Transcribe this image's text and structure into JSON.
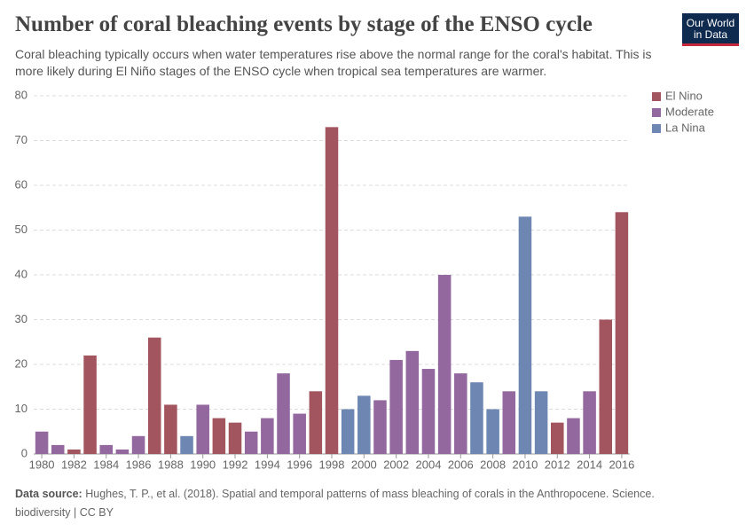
{
  "logo": "Our World in Data",
  "chart_data": {
    "type": "bar",
    "stacked": true,
    "title": "Number of coral bleaching events by stage of the ENSO cycle",
    "subtitle": "Coral bleaching typically occurs when water temperatures rise above the normal range for the coral's habitat. This is more likely during El Niño stages of the ENSO cycle when tropical sea temperatures are warmer.",
    "source_label": "Data source:",
    "source": "Hughes, T. P., et al. (2018). Spatial and temporal patterns of mass bleaching of corals in the Anthropocene. Science. biodiversity | CC BY",
    "x": [
      1980,
      1981,
      1982,
      1983,
      1984,
      1985,
      1986,
      1987,
      1988,
      1989,
      1990,
      1991,
      1992,
      1993,
      1994,
      1995,
      1996,
      1997,
      1998,
      1999,
      2000,
      2001,
      2002,
      2003,
      2004,
      2005,
      2006,
      2007,
      2008,
      2009,
      2010,
      2011,
      2012,
      2013,
      2014,
      2015,
      2016
    ],
    "xlim": [
      1979.5,
      2016.5
    ],
    "xticks": [
      1980,
      1982,
      1984,
      1986,
      1988,
      1990,
      1992,
      1994,
      1996,
      1998,
      2000,
      2002,
      2004,
      2006,
      2008,
      2010,
      2012,
      2014,
      2016
    ],
    "ylim": [
      0,
      80
    ],
    "yticks": [
      0,
      10,
      20,
      30,
      40,
      50,
      60,
      70,
      80
    ],
    "grid": true,
    "legend": "right",
    "series": [
      {
        "name": "El Nino",
        "color": "#a2545f",
        "values": [
          null,
          null,
          1,
          22,
          null,
          null,
          null,
          26,
          11,
          null,
          null,
          8,
          7,
          null,
          null,
          null,
          null,
          14,
          73,
          null,
          null,
          null,
          null,
          null,
          null,
          null,
          null,
          null,
          null,
          null,
          null,
          null,
          7,
          null,
          null,
          30,
          54
        ]
      },
      {
        "name": "Moderate",
        "color": "#93689f",
        "values": [
          5,
          2,
          null,
          null,
          2,
          1,
          4,
          null,
          null,
          null,
          11,
          null,
          null,
          5,
          8,
          18,
          9,
          null,
          null,
          null,
          null,
          12,
          21,
          23,
          19,
          40,
          18,
          null,
          null,
          14,
          null,
          null,
          null,
          8,
          14,
          null,
          null
        ]
      },
      {
        "name": "La Nina",
        "color": "#6d87b2",
        "values": [
          null,
          null,
          null,
          null,
          null,
          null,
          null,
          null,
          null,
          4,
          null,
          null,
          null,
          null,
          null,
          null,
          null,
          null,
          null,
          10,
          13,
          null,
          null,
          null,
          null,
          null,
          null,
          16,
          10,
          null,
          53,
          14,
          null,
          null,
          null,
          null,
          null
        ]
      }
    ]
  }
}
